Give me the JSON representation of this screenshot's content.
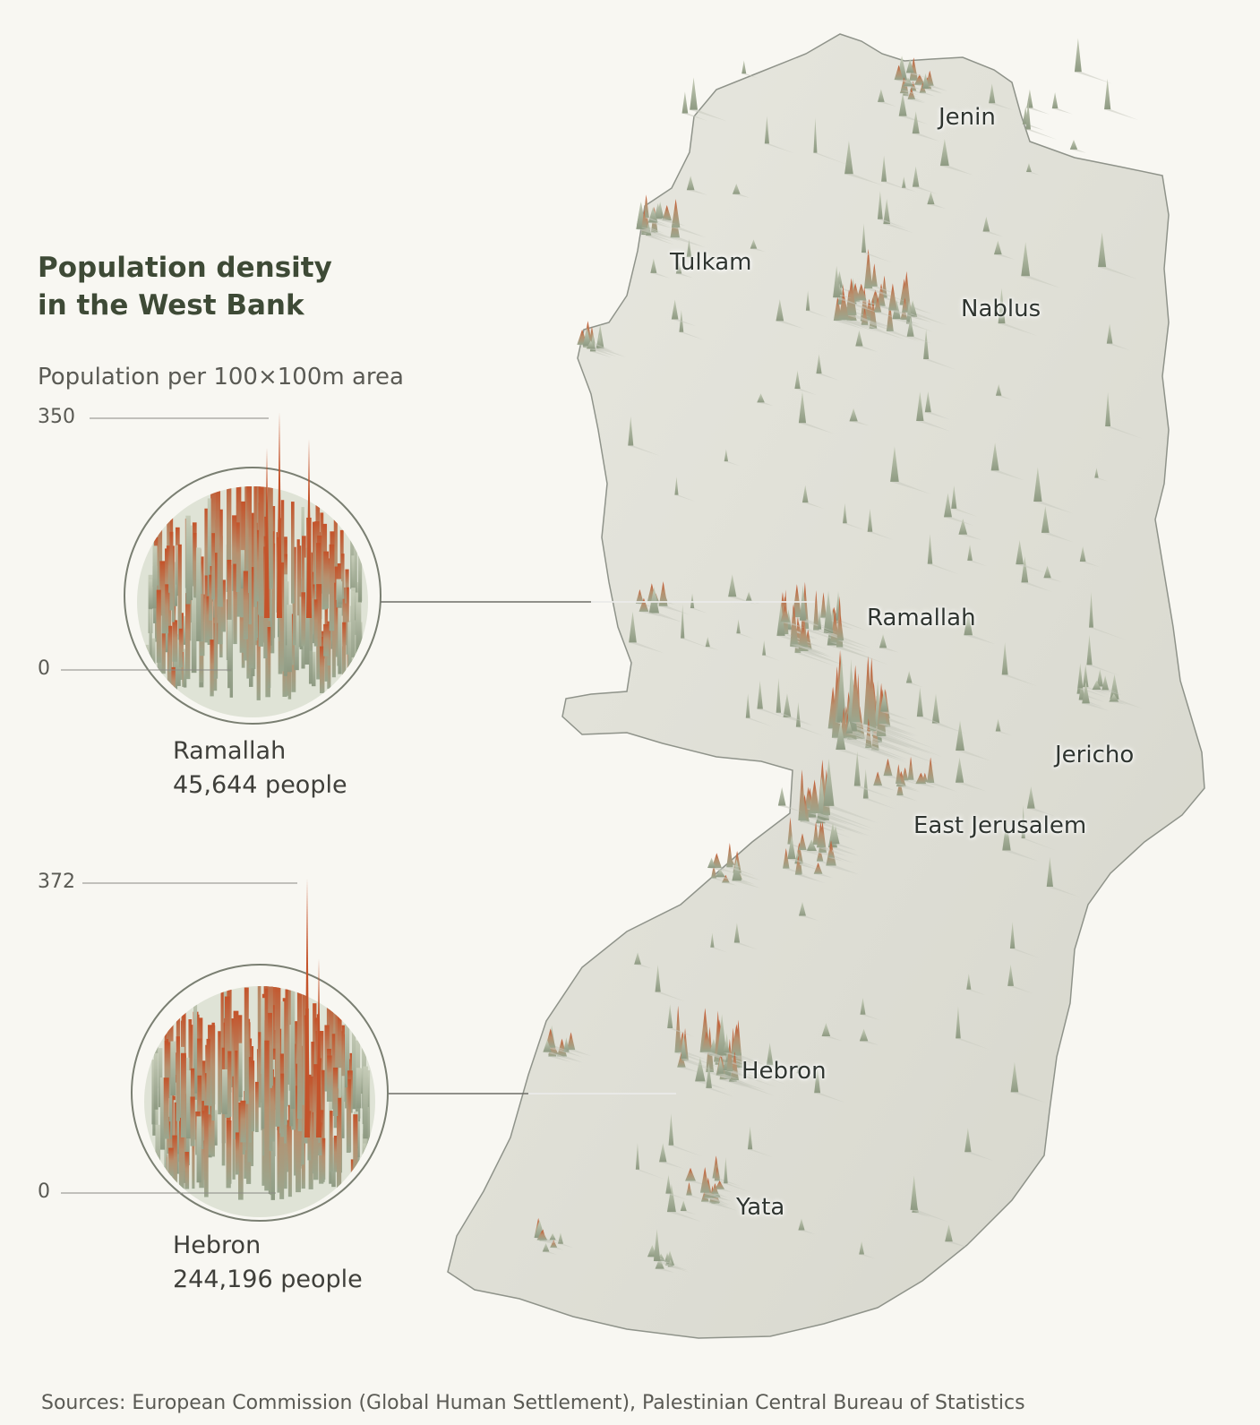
{
  "title_line1": "Population density",
  "title_line2": "in the West Bank",
  "subtitle": "Population per 100×100m area",
  "insets": [
    {
      "city": "Ramallah",
      "population": "45,644 people",
      "scale_max": "350",
      "scale_min": "0"
    },
    {
      "city": "Hebron",
      "population": "244,196 people",
      "scale_max": "372",
      "scale_min": "0"
    }
  ],
  "cities": {
    "jenin": "Jenin",
    "tulkam": "Tulkam",
    "nablus": "Nablus",
    "ramallah": "Ramallah",
    "jericho": "Jericho",
    "east_jerusalem": "East Jerusalem",
    "hebron": "Hebron",
    "yata": "Yata"
  },
  "sources": "Sources: European Commission (Global Human Settlement), Palestinian Central Bureau of Statistics",
  "colors": {
    "background": "#f8f7f2",
    "land": "#dcdcd3",
    "land_edge": "#8f938a",
    "spike_low": "#9aa68e",
    "spike_high": "#c4532a",
    "title": "#3e4a36"
  }
}
